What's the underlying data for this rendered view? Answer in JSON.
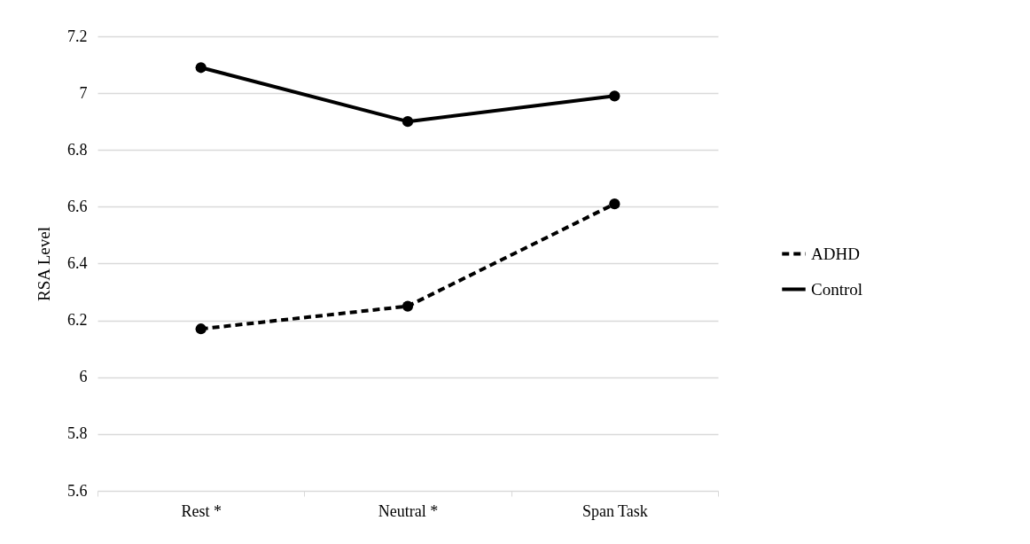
{
  "chart_data": {
    "type": "line",
    "ylabel": "RSA Level",
    "categories": [
      "Rest *",
      "Neutral *",
      "Span Task"
    ],
    "series": [
      {
        "name": "ADHD",
        "color": "#000000",
        "line_style": "dashed",
        "values": [
          6.17,
          6.25,
          6.61
        ]
      },
      {
        "name": "Control",
        "color": "#000000",
        "line_style": "solid",
        "values": [
          7.09,
          6.9,
          6.99
        ]
      }
    ],
    "ylim": [
      5.6,
      7.2
    ],
    "yticks": [
      5.6,
      5.8,
      6,
      6.2,
      6.4,
      6.6,
      6.8,
      7,
      7.2
    ],
    "grid": "y",
    "legend": "right",
    "marker": "circle"
  }
}
